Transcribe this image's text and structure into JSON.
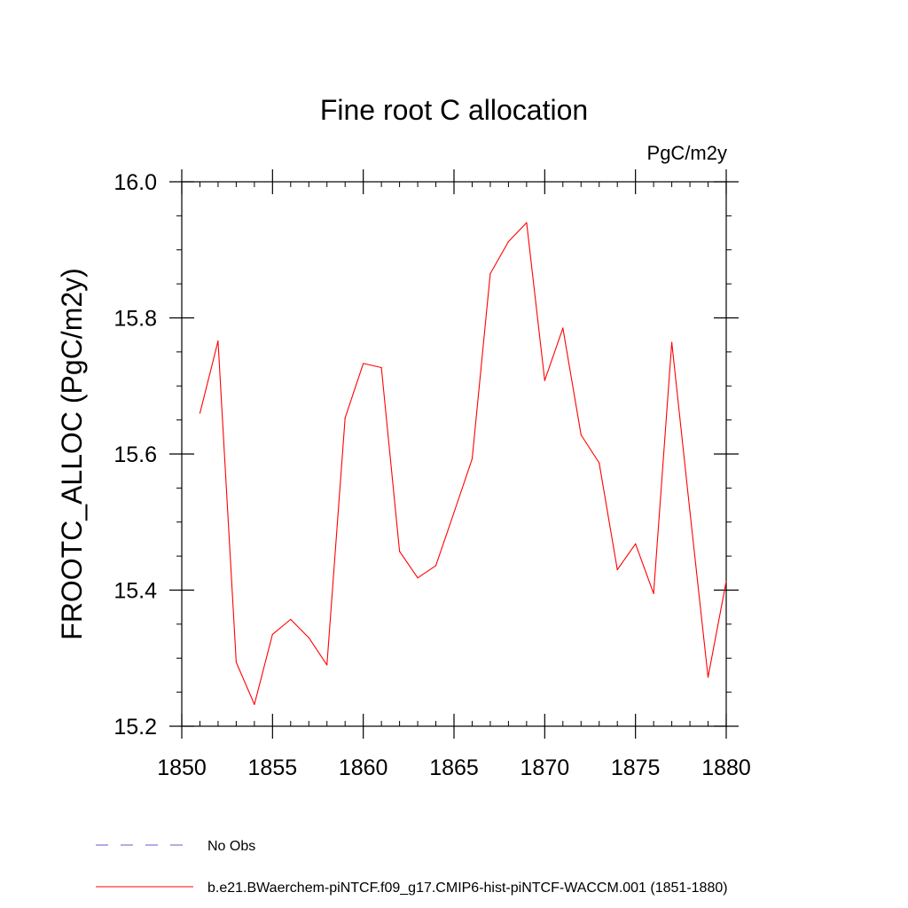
{
  "chart_data": {
    "type": "line",
    "title": "Fine root C allocation",
    "units_label": "PgC/m2y",
    "xlabel": "",
    "ylabel": "FROOTC_ALLOC  (PgC/m2y)",
    "xlim": [
      1850,
      1880
    ],
    "ylim": [
      15.2,
      16.0
    ],
    "x_ticks": [
      1850,
      1855,
      1860,
      1865,
      1870,
      1875,
      1880
    ],
    "y_ticks": [
      15.2,
      15.4,
      15.6,
      15.8,
      16.0
    ],
    "x_tick_labels": [
      "1850",
      "1855",
      "1860",
      "1865",
      "1870",
      "1875",
      "1880"
    ],
    "y_tick_labels": [
      "15.2",
      "15.4",
      "15.6",
      "15.8",
      "16.0"
    ],
    "grid": false,
    "legend_position": "bottom",
    "series": [
      {
        "name": "b.e21.BWaerchem-piNTCF.f09_g17.CMIP6-hist-piNTCF-WACCM.001 (1851-1880)",
        "color": "#ff0000",
        "style": "solid",
        "x": [
          1851,
          1852,
          1853,
          1854,
          1855,
          1856,
          1857,
          1858,
          1859,
          1860,
          1861,
          1862,
          1863,
          1864,
          1865,
          1866,
          1867,
          1868,
          1869,
          1870,
          1871,
          1872,
          1873,
          1874,
          1875,
          1876,
          1877,
          1878,
          1879,
          1880
        ],
        "values": [
          15.66,
          15.766,
          15.294,
          15.232,
          15.335,
          15.357,
          15.33,
          15.29,
          15.653,
          15.733,
          15.727,
          15.457,
          15.418,
          15.436,
          15.514,
          15.593,
          15.865,
          15.912,
          15.94,
          15.708,
          15.785,
          15.628,
          15.587,
          15.43,
          15.468,
          15.395,
          15.764,
          15.515,
          15.272,
          15.413
        ]
      }
    ],
    "legend": [
      {
        "label": "No Obs",
        "color": "#6a5acd",
        "style": "dashed"
      },
      {
        "label": "b.e21.BWaerchem-piNTCF.f09_g17.CMIP6-hist-piNTCF-WACCM.001 (1851-1880)",
        "color": "#ff0000",
        "style": "solid"
      }
    ]
  }
}
